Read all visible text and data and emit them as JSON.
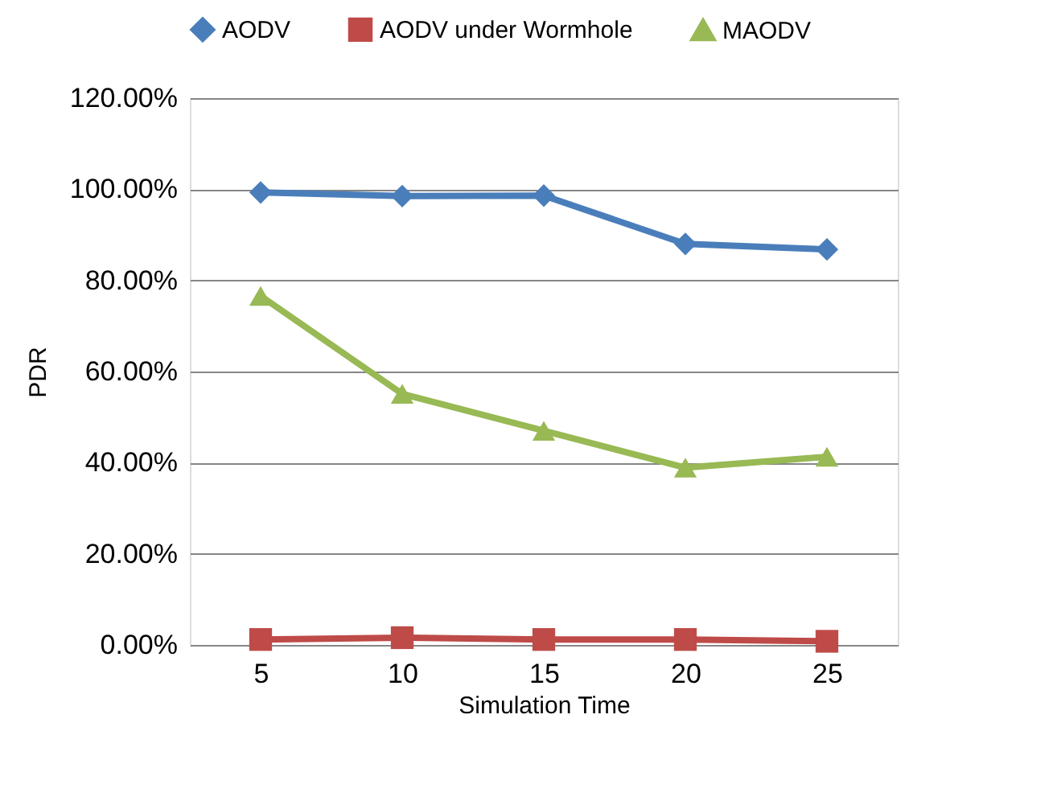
{
  "chart_data": {
    "type": "line",
    "xlabel": "Simulation Time",
    "ylabel": "PDR",
    "categories": [
      "5",
      "10",
      "15",
      "20",
      "25"
    ],
    "series": [
      {
        "name": "AODV",
        "color": "#4a7ebb",
        "marker": "diamond",
        "values": [
          99.3,
          98.5,
          98.6,
          88,
          86.8
        ]
      },
      {
        "name": "AODV under Wormhole",
        "color": "#be4b48",
        "marker": "square",
        "values": [
          1.2,
          1.6,
          1.2,
          1.2,
          0.8
        ]
      },
      {
        "name": "MAODV",
        "color": "#98b954",
        "marker": "triangle",
        "values": [
          76.6,
          55.1,
          47,
          38.9,
          41.3
        ]
      }
    ],
    "ylim": [
      0,
      120
    ],
    "yticks": [
      {
        "value": 0,
        "label": "0.00%"
      },
      {
        "value": 20,
        "label": "20.00%"
      },
      {
        "value": 40,
        "label": "40.00%"
      },
      {
        "value": 60,
        "label": "60.00%"
      },
      {
        "value": 80,
        "label": "80.00%"
      },
      {
        "value": 100,
        "label": "100.00%"
      },
      {
        "value": 120,
        "label": "120.00%"
      }
    ],
    "grid": "y",
    "legend": "top",
    "line_style": "solid"
  }
}
